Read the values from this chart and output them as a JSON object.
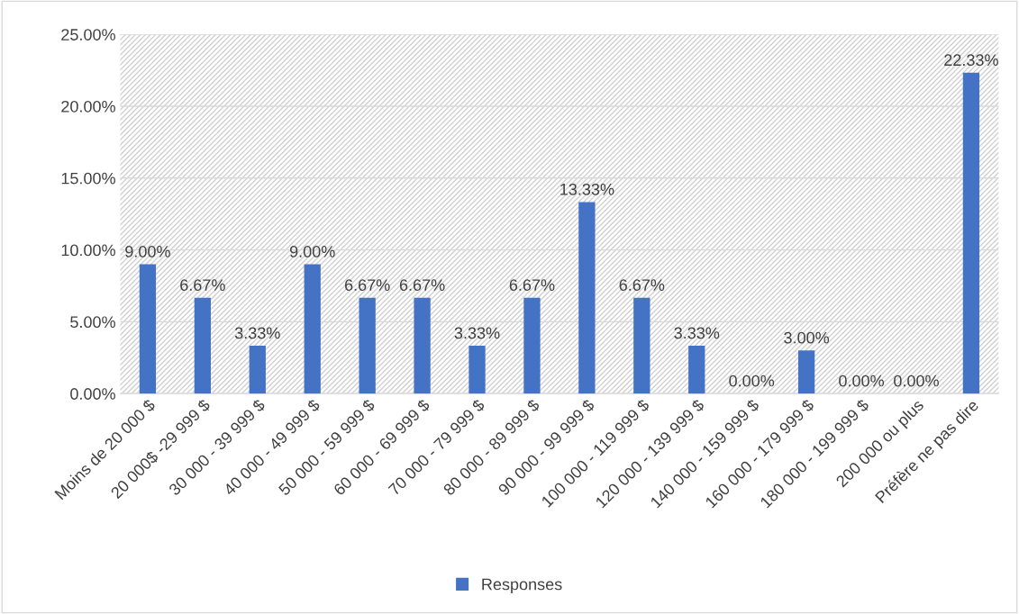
{
  "chart_data": {
    "type": "bar",
    "categories": [
      "Moins de 20 000 $",
      "20 000$ -29 999 $",
      "30 000 - 39 999 $",
      "40 000 - 49 999 $",
      "50 000 - 59 999 $",
      "60 000 - 69 999 $",
      "70 000 - 79 999 $",
      "80 000 - 89 999 $",
      "90 000 - 99 999 $",
      "100 000 - 119 999 $",
      "120 000 - 139 999 $",
      "140 000 - 159 999 $",
      "160 000 - 179 999 $",
      "180 000 - 199 999 $",
      "200 000 ou plus",
      "Préfère ne pas dire"
    ],
    "series": [
      {
        "name": "Responses",
        "color": "#4472c4",
        "values": [
          9.0,
          6.67,
          3.33,
          9.0,
          6.67,
          6.67,
          3.33,
          6.67,
          13.33,
          6.67,
          3.33,
          0.0,
          3.0,
          0.0,
          0.0,
          22.33
        ],
        "value_labels": [
          "9.00%",
          "6.67%",
          "3.33%",
          "9.00%",
          "6.67%",
          "6.67%",
          "3.33%",
          "6.67%",
          "13.33%",
          "6.67%",
          "3.33%",
          "0.00%",
          "3.00%",
          "0.00%",
          "0.00%",
          "22.33%"
        ]
      }
    ],
    "ylim": [
      0,
      25
    ],
    "yticks": [
      {
        "value": 0,
        "label": "0.00%"
      },
      {
        "value": 5,
        "label": "5.00%"
      },
      {
        "value": 10,
        "label": "10.00%"
      },
      {
        "value": 15,
        "label": "15.00%"
      },
      {
        "value": 20,
        "label": "20.00%"
      },
      {
        "value": 25,
        "label": "25.00%"
      }
    ],
    "grid": true,
    "legend": "bottom"
  }
}
